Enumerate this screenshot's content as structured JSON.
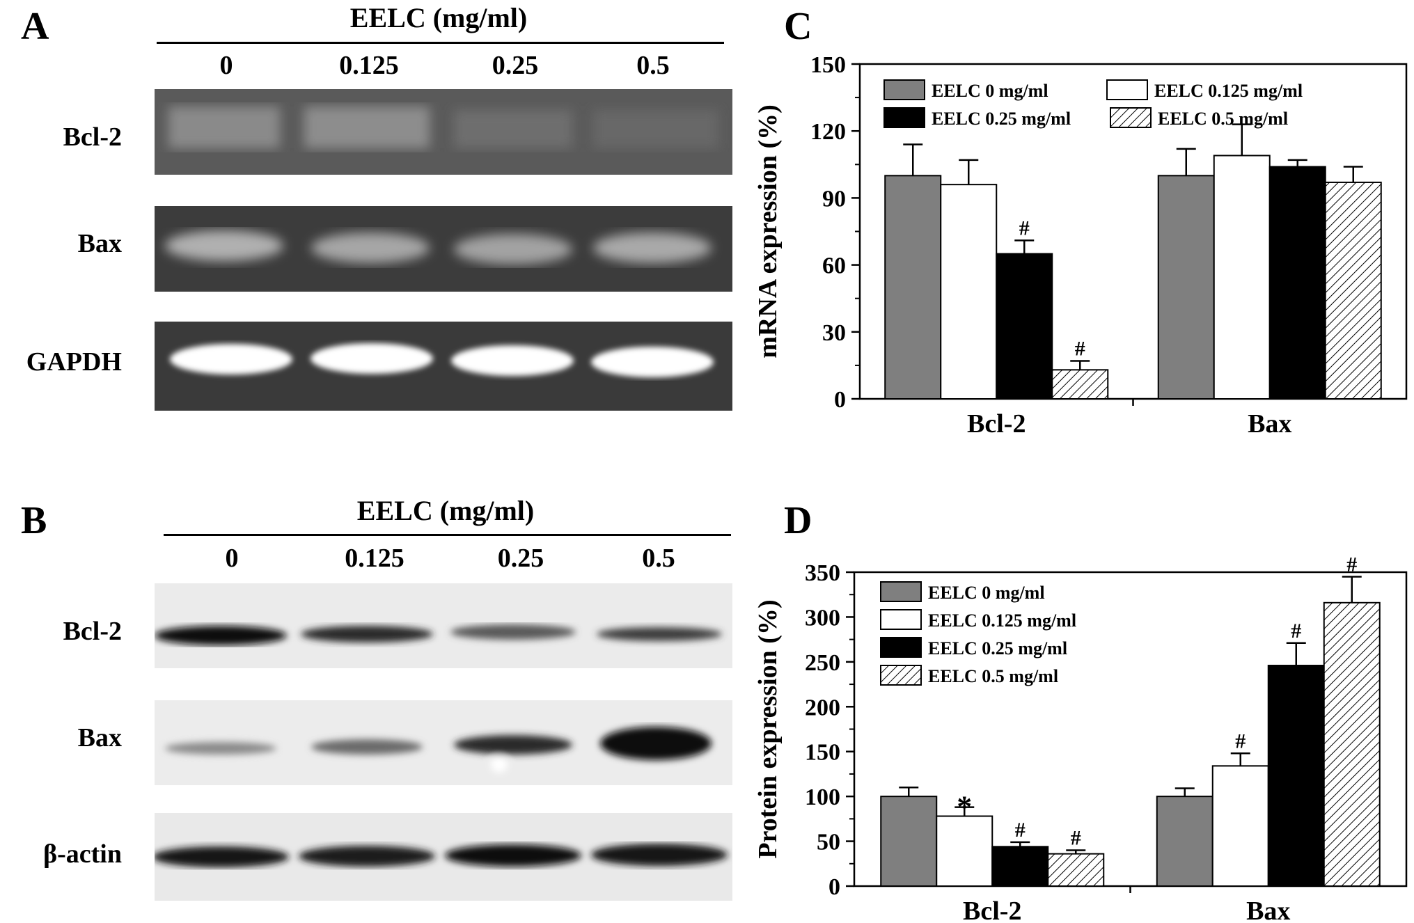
{
  "colors": {
    "s0": "#7f7f7f",
    "s1": "#ffffff",
    "s2": "#000000",
    "s3": "hatch",
    "gel_dark": "#3d3d3d",
    "gel_light": "#efefef"
  },
  "panels": {
    "A": {
      "letter": "A",
      "title": "EELC (mg/ml)",
      "lanes": [
        "0",
        "0.125",
        "0.25",
        "0.5"
      ],
      "rows": [
        "Bcl-2",
        "Bax",
        "GAPDH"
      ]
    },
    "B": {
      "letter": "B",
      "title": "EELC (mg/ml)",
      "lanes": [
        "0",
        "0.125",
        "0.25",
        "0.5"
      ],
      "rows": [
        "Bcl-2",
        "Bax",
        "β-actin"
      ]
    }
  },
  "chart_data": [
    {
      "panel": "C",
      "type": "bar",
      "ylabel": "mRNA expression (%)",
      "ylim": [
        0,
        150
      ],
      "yticks": [
        0,
        30,
        60,
        90,
        120,
        150
      ],
      "categories": [
        "Bcl-2",
        "Bax"
      ],
      "legend_layout": "grid",
      "series": [
        {
          "name": "EELC 0 mg/ml",
          "values": [
            100,
            100
          ],
          "errors": [
            14,
            12
          ],
          "marks": [
            "",
            ""
          ]
        },
        {
          "name": "EELC 0.125 mg/ml",
          "values": [
            96,
            109
          ],
          "errors": [
            11,
            14
          ],
          "marks": [
            "",
            ""
          ]
        },
        {
          "name": "EELC 0.25 mg/ml",
          "values": [
            65,
            104
          ],
          "errors": [
            6,
            3
          ],
          "marks": [
            "#",
            ""
          ]
        },
        {
          "name": "EELC 0.5 mg/ml",
          "values": [
            13,
            97
          ],
          "errors": [
            4,
            7
          ],
          "marks": [
            "#",
            ""
          ]
        }
      ]
    },
    {
      "panel": "D",
      "type": "bar",
      "ylabel": "Protein expression (%)",
      "ylim": [
        0,
        350
      ],
      "yticks": [
        0,
        50,
        100,
        150,
        200,
        250,
        300,
        350
      ],
      "categories": [
        "Bcl-2",
        "Bax"
      ],
      "legend_layout": "column",
      "series": [
        {
          "name": "EELC 0 mg/ml",
          "values": [
            100,
            100
          ],
          "errors": [
            10,
            9
          ],
          "marks": [
            "",
            ""
          ]
        },
        {
          "name": "EELC 0.125 mg/ml",
          "values": [
            78,
            134
          ],
          "errors": [
            10,
            14
          ],
          "marks": [
            "*",
            "#"
          ]
        },
        {
          "name": "EELC 0.25 mg/ml",
          "values": [
            44,
            246
          ],
          "errors": [
            5,
            25
          ],
          "marks": [
            "#",
            "#"
          ]
        },
        {
          "name": "EELC 0.5 mg/ml",
          "values": [
            36,
            316
          ],
          "errors": [
            4,
            29
          ],
          "marks": [
            "#",
            "#"
          ]
        }
      ]
    }
  ]
}
